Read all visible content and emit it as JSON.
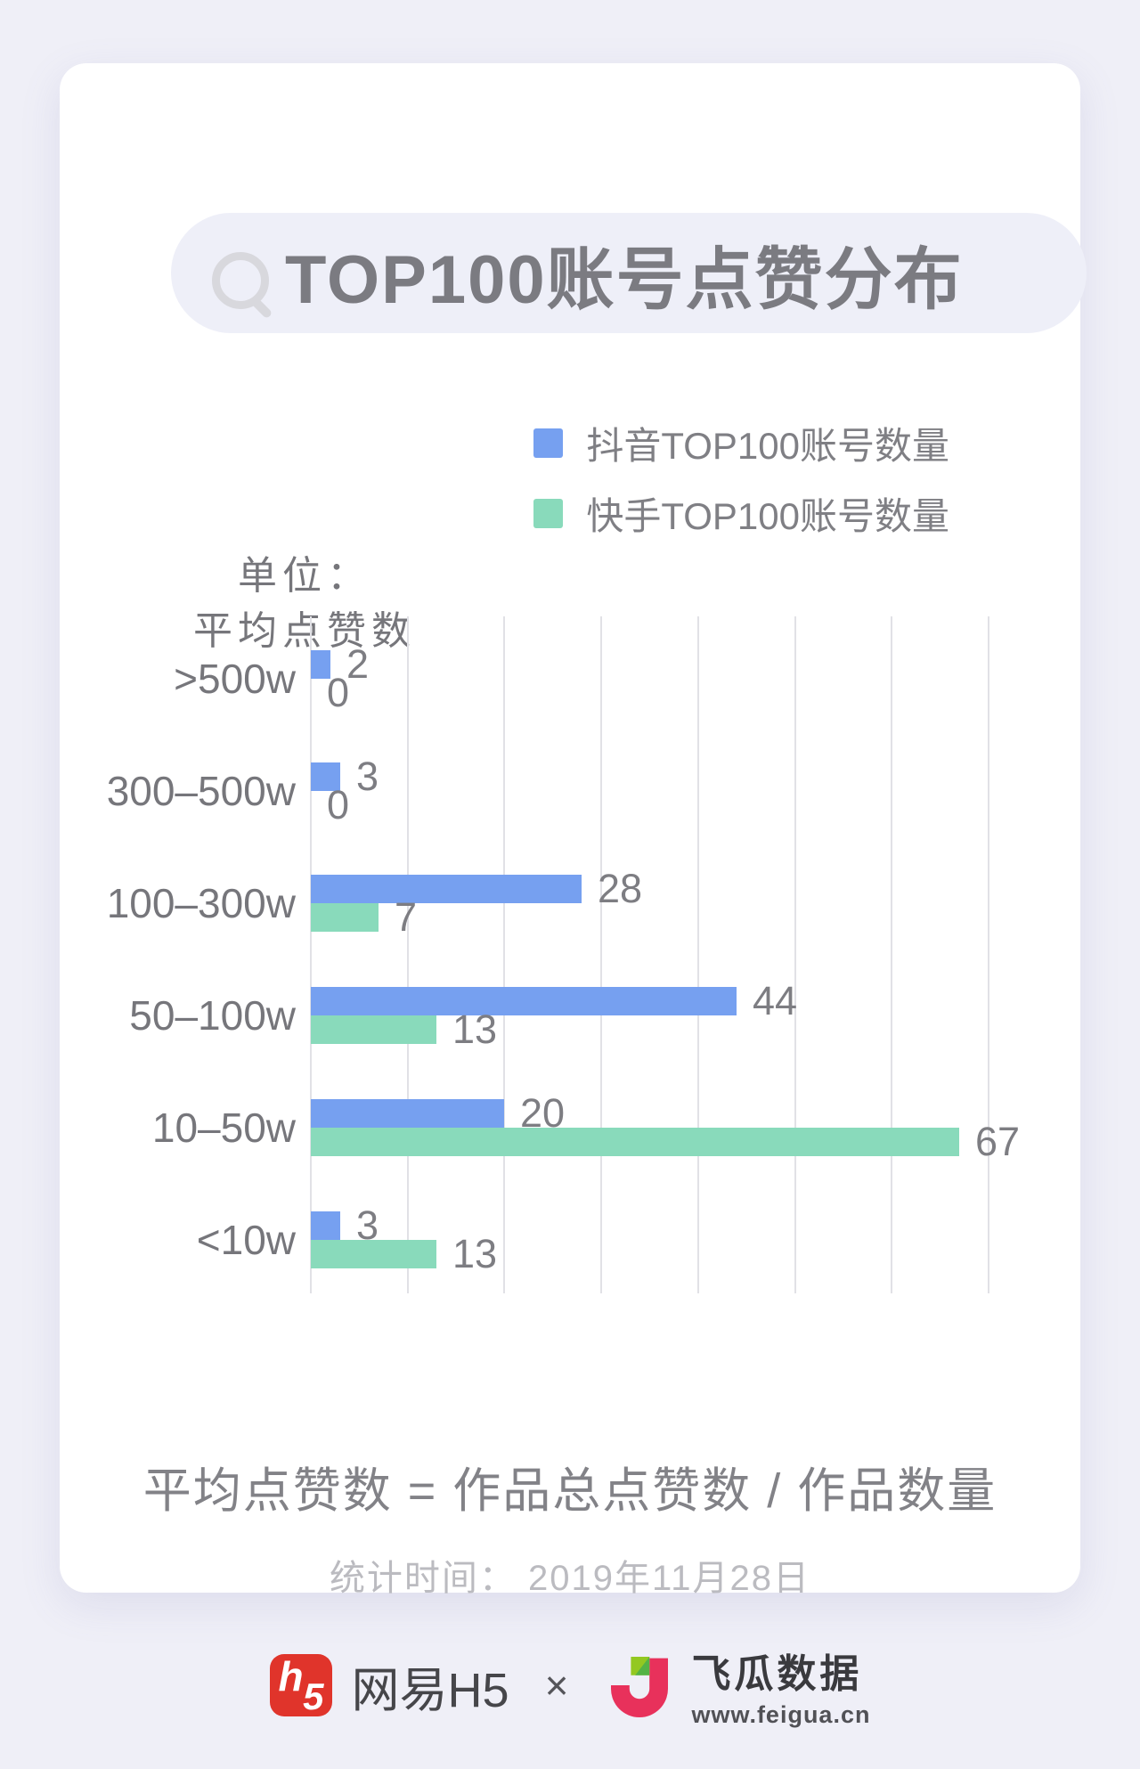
{
  "page": {
    "background": "#EFEFF7",
    "card_background": "#FFFFFF"
  },
  "title": {
    "text": "TOP100账号点赞分布"
  },
  "legend": {
    "items": [
      {
        "label": "抖音TOP100账号数量",
        "color": "#76A0F0"
      },
      {
        "label": "快手TOP100账号数量",
        "color": "#89DABB"
      }
    ]
  },
  "unit_label": {
    "line1": "单位：",
    "line2": "平均点赞数"
  },
  "chart_data": {
    "type": "bar",
    "orientation": "horizontal",
    "categories": [
      ">500w",
      "300–500w",
      "100–300w",
      "50–100w",
      "10–50w",
      "<10w"
    ],
    "series": [
      {
        "name": "抖音TOP100账号数量",
        "color": "#76A0F0",
        "values": [
          2,
          3,
          28,
          44,
          20,
          3
        ]
      },
      {
        "name": "快手TOP100账号数量",
        "color": "#89DABB",
        "values": [
          0,
          0,
          7,
          13,
          67,
          13
        ]
      }
    ],
    "xlim": [
      0,
      70
    ],
    "grid_step": 10,
    "grid": "vertical",
    "value_labels": true,
    "legend_position": "top-right",
    "xlabel": "",
    "ylabel": "平均点赞数"
  },
  "footer": {
    "formula": "平均点赞数 = 作品总点赞数 / 作品数量",
    "stat_time": "统计时间： 2019年11月28日"
  },
  "branding": {
    "netease": {
      "logo_text_h": "h",
      "logo_text_5": "5",
      "label": "网易H5",
      "logo_color": "#E0342B"
    },
    "separator": "×",
    "feigua": {
      "label": "飞瓜数据",
      "url": "www.feigua.cn",
      "brand_pink": "#E8315B",
      "brand_green_light": "#93C821",
      "brand_green_dark": "#54B345"
    }
  }
}
